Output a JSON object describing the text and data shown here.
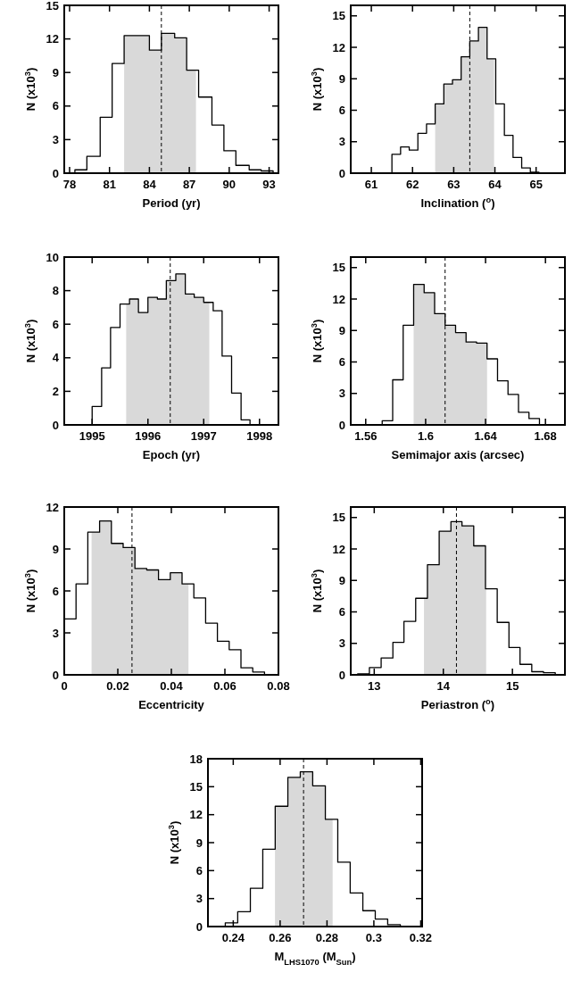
{
  "chart_data": [
    {
      "type": "histogram",
      "xlabel": "Period (yr)",
      "ylabel": "N (x10$^{3}$)",
      "color": "#000000",
      "bins": [
        78.4,
        79.3,
        80.3,
        81.2,
        82.1,
        83.1,
        84.0,
        84.9,
        85.9,
        86.8,
        87.7,
        88.7,
        89.6,
        90.5,
        91.5,
        92.4,
        93.3
      ],
      "values": [
        0.3,
        1.5,
        5.0,
        9.8,
        12.3,
        12.3,
        11.0,
        12.5,
        12.1,
        9.2,
        6.8,
        4.3,
        2.0,
        0.7,
        0.3,
        0.2
      ],
      "xlim": [
        77.6,
        93.7
      ],
      "xticks": [
        78,
        81,
        84,
        87,
        90,
        93
      ],
      "ylim": [
        0,
        15
      ],
      "yticks": [
        0,
        3,
        6,
        9,
        12,
        15
      ],
      "ref_lines": [
        {
          "axis": "x",
          "value": 84.9,
          "line_style": "dashed"
        }
      ],
      "bands": [
        {
          "axis": "x",
          "from": 82.1,
          "to": 87.5,
          "color": "#d9d9d9"
        }
      ]
    },
    {
      "type": "histogram",
      "xlabel": "Inclination ($^{o}$)",
      "ylabel": "N (x10$^{3}$)",
      "color": "#000000",
      "bins": [
        61.5,
        61.71,
        61.92,
        62.13,
        62.34,
        62.55,
        62.76,
        62.97,
        63.18,
        63.39,
        63.6,
        63.81,
        64.02,
        64.23,
        64.44,
        64.65,
        64.86,
        65.07
      ],
      "values": [
        1.8,
        2.5,
        2.2,
        3.8,
        4.7,
        6.6,
        8.5,
        8.9,
        11.1,
        12.6,
        13.9,
        10.9,
        6.6,
        3.6,
        1.5,
        0.5,
        0.1
      ],
      "xlim": [
        60.5,
        65.7
      ],
      "xticks": [
        61,
        62,
        63,
        64,
        65
      ],
      "ylim": [
        0,
        16
      ],
      "yticks": [
        0,
        3,
        6,
        9,
        12,
        15
      ],
      "ref_lines": [
        {
          "axis": "x",
          "value": 63.39,
          "line_style": "dashed"
        }
      ],
      "bands": [
        {
          "axis": "x",
          "from": 62.55,
          "to": 63.98,
          "color": "#d9d9d9"
        }
      ]
    },
    {
      "type": "histogram",
      "xlabel": "Epoch (yr)",
      "ylabel": "N (x10$^{3}$)",
      "color": "#000000",
      "bins": [
        1995,
        1995.17,
        1995.33,
        1995.5,
        1995.67,
        1995.83,
        1996,
        1996.17,
        1996.33,
        1996.5,
        1996.67,
        1996.83,
        1997,
        1997.17,
        1997.33,
        1997.5,
        1997.67,
        1997.83
      ],
      "values": [
        1.1,
        3.4,
        5.8,
        7.2,
        7.5,
        6.7,
        7.6,
        7.5,
        8.6,
        9.0,
        7.8,
        7.6,
        7.3,
        6.8,
        4.1,
        1.9,
        0.3
      ],
      "xlim": [
        1994.5,
        1998.34
      ],
      "xticks": [
        1995,
        1996,
        1997,
        1998
      ],
      "ylim": [
        0,
        10
      ],
      "yticks": [
        0,
        2,
        4,
        6,
        8,
        10
      ],
      "ref_lines": [
        {
          "axis": "x",
          "value": 1996.4,
          "line_style": "dashed"
        }
      ],
      "bands": [
        {
          "axis": "x",
          "from": 1995.61,
          "to": 1997.1,
          "color": "#d9d9d9"
        }
      ]
    },
    {
      "type": "histogram",
      "xlabel": "Semimajor axis (arcsec)",
      "ylabel": "N (x10$^{3}$)",
      "color": "#000000",
      "bins": [
        1.571,
        1.578,
        1.585,
        1.592,
        1.599,
        1.606,
        1.613,
        1.62,
        1.627,
        1.634,
        1.641,
        1.648,
        1.655,
        1.662,
        1.669,
        1.676
      ],
      "values": [
        0.4,
        4.3,
        9.5,
        13.4,
        12.6,
        10.6,
        9.5,
        8.8,
        7.9,
        7.8,
        6.3,
        4.2,
        2.9,
        1.2,
        0.6
      ],
      "xlim": [
        1.55,
        1.693
      ],
      "xticks": [
        1.56,
        {
          "value": 1.6,
          "label": "1.6"
        },
        1.64,
        1.68
      ],
      "ylim": [
        0,
        16
      ],
      "yticks": [
        0,
        3,
        6,
        9,
        12,
        15
      ],
      "ref_lines": [
        {
          "axis": "x",
          "value": 1.613,
          "line_style": "dashed"
        }
      ],
      "bands": [
        {
          "axis": "x",
          "from": 1.592,
          "to": 1.641,
          "color": "#d9d9d9"
        }
      ]
    },
    {
      "type": "histogram",
      "xlabel": "Eccentricity",
      "ylabel": "N (x10$^{3}$)",
      "color": "#000000",
      "bins": [
        0,
        0.0044,
        0.0088,
        0.0132,
        0.0176,
        0.022,
        0.0264,
        0.0308,
        0.0352,
        0.0396,
        0.044,
        0.0484,
        0.0528,
        0.0572,
        0.0616,
        0.066,
        0.0704,
        0.0748
      ],
      "values": [
        4.0,
        6.5,
        10.2,
        11.0,
        9.4,
        9.1,
        7.6,
        7.5,
        6.8,
        7.3,
        6.5,
        5.5,
        3.7,
        2.4,
        1.8,
        0.5,
        0.2
      ],
      "xlim": [
        0,
        0.08
      ],
      "xticks": [
        0,
        0.02,
        0.04,
        0.06,
        0.08
      ],
      "ylim": [
        0,
        12
      ],
      "yticks": [
        0,
        3,
        6,
        9,
        12
      ],
      "ref_lines": [
        {
          "axis": "x",
          "value": 0.0253,
          "line_style": "dashed"
        }
      ],
      "bands": [
        {
          "axis": "x",
          "from": 0.0102,
          "to": 0.0464,
          "color": "#d9d9d9"
        }
      ]
    },
    {
      "type": "histogram",
      "xlabel": "Periastron ($^{o}$)",
      "ylabel": "N (x10$^{3}$)",
      "color": "#000000",
      "bins": [
        12.76,
        12.93,
        13.1,
        13.27,
        13.43,
        13.6,
        13.77,
        13.94,
        14.11,
        14.27,
        14.44,
        14.61,
        14.78,
        14.95,
        15.11,
        15.28,
        15.45,
        15.62
      ],
      "values": [
        0.1,
        0.7,
        1.6,
        3.1,
        5.1,
        7.3,
        10.5,
        13.7,
        14.6,
        14.2,
        12.3,
        8.2,
        5.0,
        2.6,
        1.0,
        0.3,
        0.2
      ],
      "xlim": [
        12.66,
        15.76
      ],
      "xticks": [
        13,
        14,
        15
      ],
      "ylim": [
        0,
        16
      ],
      "yticks": [
        0,
        3,
        6,
        9,
        12,
        15
      ],
      "ref_lines": [
        {
          "axis": "x",
          "value": 14.19,
          "line_style": "dashed"
        }
      ],
      "bands": [
        {
          "axis": "x",
          "from": 13.72,
          "to": 14.62,
          "color": "#d9d9d9"
        }
      ]
    },
    {
      "type": "histogram",
      "xlabel": "M$_{LHS1070}$ (M$_{Sun}$)",
      "ylabel": "N (x10$^{3}$)",
      "color": "#000000",
      "bins": [
        0.2366,
        0.2419,
        0.2473,
        0.2526,
        0.2579,
        0.2633,
        0.2686,
        0.2739,
        0.2793,
        0.2846,
        0.2899,
        0.2953,
        0.3006,
        0.3059,
        0.3113
      ],
      "values": [
        0.4,
        1.6,
        4.1,
        8.3,
        12.9,
        16.0,
        16.6,
        15.1,
        11.5,
        6.9,
        3.6,
        1.7,
        0.8,
        0.2
      ],
      "xlim": [
        0.2292,
        0.3206
      ],
      "xticks": [
        0.24,
        0.26,
        0.28,
        {
          "value": 0.3,
          "label": "0.3"
        },
        0.32
      ],
      "ylim": [
        0,
        18
      ],
      "yticks": [
        0,
        3,
        6,
        9,
        12,
        15,
        18
      ],
      "ref_lines": [
        {
          "axis": "x",
          "value": 0.27,
          "line_style": "dashed"
        }
      ],
      "bands": [
        {
          "axis": "x",
          "from": 0.2578,
          "to": 0.2824,
          "color": "#d9d9d9"
        }
      ]
    }
  ]
}
